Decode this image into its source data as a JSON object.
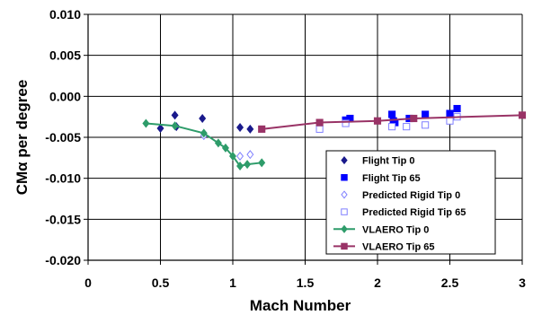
{
  "chart_data": {
    "type": "scatter",
    "xlabel": "Mach Number",
    "ylabel": "CMα per degree",
    "xlim": [
      0,
      3
    ],
    "ylim": [
      -0.02,
      0.01
    ],
    "x_ticks": [
      0,
      0.5,
      1,
      1.5,
      2,
      2.5,
      3
    ],
    "x_tick_labels": [
      "0",
      "0.5",
      "1",
      "1.5",
      "2",
      "2.5",
      "3"
    ],
    "y_ticks": [
      0.01,
      0.005,
      0.0,
      -0.005,
      -0.01,
      -0.015,
      -0.02
    ],
    "y_tick_labels": [
      "0.010",
      "0.005",
      "0.000",
      "-0.005",
      "-0.010",
      "-0.015",
      "-0.020"
    ],
    "grid": "vertical and horizontal major gridlines",
    "legend_position": "right, lower",
    "series": [
      {
        "name": "Flight Tip 0",
        "marker": "diamond",
        "filled": true,
        "line": false,
        "color": "#1a1a8c",
        "x": [
          0.5,
          0.6,
          0.61,
          0.79,
          1.05,
          1.12
        ],
        "y": [
          -0.0039,
          -0.0023,
          -0.0037,
          -0.0027,
          -0.0038,
          -0.004
        ]
      },
      {
        "name": "Flight Tip 65",
        "marker": "square",
        "filled": true,
        "line": false,
        "color": "#0000ff",
        "x": [
          1.78,
          1.81,
          2.1,
          2.11,
          2.12,
          2.22,
          2.33,
          2.5,
          2.55
        ],
        "y": [
          -0.0029,
          -0.0027,
          -0.0022,
          -0.003,
          -0.0032,
          -0.0027,
          -0.0022,
          -0.0021,
          -0.0015
        ]
      },
      {
        "name": "Predicted Rigid Tip 0",
        "marker": "diamond",
        "filled": false,
        "line": false,
        "color": "#8080ff",
        "x": [
          0.8,
          1.05,
          1.12
        ],
        "y": [
          -0.0048,
          -0.0073,
          -0.0071
        ]
      },
      {
        "name": "Predicted Rigid Tip 65",
        "marker": "square",
        "filled": false,
        "line": false,
        "color": "#8080ff",
        "x": [
          1.6,
          1.78,
          2.1,
          2.2,
          2.33,
          2.5,
          2.55
        ],
        "y": [
          -0.004,
          -0.0033,
          -0.0037,
          -0.0037,
          -0.0035,
          -0.003,
          -0.0025
        ]
      },
      {
        "name": "VLAERO Tip 0",
        "marker": "diamond",
        "filled": true,
        "line": true,
        "color": "#2e9c6a",
        "x": [
          0.4,
          0.6,
          0.8,
          0.9,
          0.95,
          1.0,
          1.05,
          1.1,
          1.2
        ],
        "y": [
          -0.0033,
          -0.0036,
          -0.0045,
          -0.0057,
          -0.0063,
          -0.0073,
          -0.0085,
          -0.0083,
          -0.0081
        ]
      },
      {
        "name": "VLAERO Tip 65",
        "marker": "square",
        "filled": true,
        "line": true,
        "color": "#993366",
        "x": [
          1.2,
          1.6,
          2.0,
          2.25,
          3.0
        ],
        "y": [
          -0.004,
          -0.0032,
          -0.003,
          -0.0027,
          -0.0023
        ]
      }
    ]
  }
}
